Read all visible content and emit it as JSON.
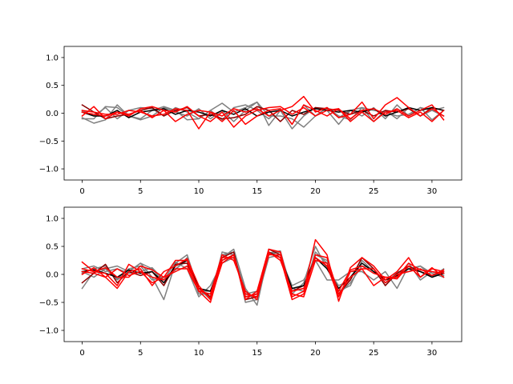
{
  "chart_data": [
    {
      "type": "line",
      "xlim": [
        -1.55,
        32.55
      ],
      "ylim": [
        -1.2,
        1.2
      ],
      "x_ticks": [
        0,
        5,
        10,
        15,
        20,
        25,
        30
      ],
      "x_tick_labels": [
        "0",
        "5",
        "10",
        "15",
        "20",
        "25",
        "30"
      ],
      "y_ticks": [
        -1.0,
        -0.5,
        0.0,
        0.5,
        1.0
      ],
      "y_tick_labels": [
        "−1.0",
        "−0.5",
        "0.0",
        "0.5",
        "1.0"
      ],
      "x": [
        0,
        1,
        2,
        3,
        4,
        5,
        6,
        7,
        8,
        9,
        10,
        11,
        12,
        13,
        14,
        15,
        16,
        17,
        18,
        19,
        20,
        21,
        22,
        23,
        24,
        25,
        26,
        27,
        28,
        29,
        30,
        31
      ],
      "series": [
        {
          "color": "#808080",
          "values": [
            -0.08,
            -0.18,
            -0.12,
            0.15,
            -0.05,
            -0.1,
            0.05,
            0.12,
            0.05,
            -0.12,
            -0.1,
            0.05,
            0.18,
            0.02,
            0.1,
            0.2,
            -0.22,
            0.05,
            -0.28,
            -0.05,
            0.1,
            0.05,
            -0.2,
            0.05,
            -0.05,
            0.1,
            -0.1,
            0.15,
            -0.05,
            0.1,
            0.05,
            -0.05
          ]
        },
        {
          "color": "#808080",
          "values": [
            0.05,
            -0.05,
            0.1,
            -0.1,
            0.05,
            0.1,
            0.08,
            -0.05,
            0.1,
            0.02,
            -0.1,
            0.05,
            -0.12,
            0.1,
            0.15,
            0.05,
            -0.1,
            0.08,
            -0.2,
            0.15,
            -0.05,
            0.1,
            -0.08,
            0.05,
            0.1,
            -0.15,
            0.05,
            -0.1,
            0.1,
            -0.05,
            0.05,
            0.1
          ]
        },
        {
          "color": "#808080",
          "values": [
            -0.1,
            -0.1,
            0.12,
            0.1,
            -0.05,
            -0.12,
            -0.05,
            0.1,
            0.02,
            -0.05,
            0.08,
            -0.1,
            0.05,
            -0.15,
            0.05,
            0.2,
            -0.05,
            -0.05,
            -0.1,
            -0.25,
            -0.05,
            0.1,
            -0.05,
            -0.12,
            0.1,
            0.05,
            0.02,
            -0.05,
            -0.02,
            0.1,
            -0.12,
            0.05
          ]
        },
        {
          "color": "#8b0000",
          "values": [
            0.15,
            0.02,
            -0.1,
            -0.05,
            -0.02,
            0.05,
            0.1,
            -0.05,
            0.05,
            0.1,
            -0.05,
            -0.02,
            -0.1,
            -0.08,
            -0.02,
            0.12,
            0.05,
            -0.15,
            0.05,
            -0.02,
            0.1,
            0.08,
            0.05,
            -0.02,
            0.05,
            -0.05,
            0.05,
            0.02,
            0.08,
            -0.05,
            0.1,
            0.05
          ]
        },
        {
          "color": "#000000",
          "values": [
            0.02,
            -0.05,
            -0.05,
            0.05,
            -0.08,
            0.02,
            0.05,
            0.08,
            -0.02,
            0.05,
            0.02,
            -0.05,
            0.05,
            -0.02,
            0.08,
            -0.05,
            0.02,
            0.05,
            -0.05,
            0.02,
            0.08,
            0.05,
            0.02,
            0.05,
            0.02,
            0.08,
            -0.05,
            0.02,
            0.1,
            0.05,
            0.1,
            0.05
          ]
        },
        {
          "color": "#ff0000",
          "values": [
            -0.05,
            0.12,
            -0.1,
            0.02,
            -0.05,
            0.08,
            0.12,
            0.05,
            0.02,
            0.12,
            -0.05,
            -0.15,
            0.02,
            -0.25,
            -0.05,
            0.05,
            0.1,
            0.12,
            -0.02,
            0.1,
            -0.05,
            0.05,
            0.08,
            -0.1,
            0.05,
            0.08,
            -0.02,
            0.08,
            -0.05,
            0.05,
            0.15,
            -0.12
          ]
        },
        {
          "color": "#ff0000",
          "values": [
            0.02,
            -0.02,
            -0.05,
            0.02,
            -0.02,
            0.05,
            -0.08,
            0.05,
            -0.15,
            -0.02,
            0.05,
            0.02,
            -0.05,
            0.08,
            0.02,
            0.08,
            -0.05,
            0.05,
            0.12,
            0.3,
            0.02,
            0.1,
            -0.08,
            -0.02,
            0.2,
            -0.1,
            0.15,
            0.28,
            0.1,
            -0.05,
            0.08,
            -0.05
          ]
        },
        {
          "color": "#ff0000",
          "values": [
            0.05,
            0.02,
            -0.02,
            -0.02,
            0.05,
            0.02,
            -0.05,
            -0.02,
            0.08,
            0.05,
            -0.28,
            0.02,
            -0.15,
            0.05,
            -0.2,
            -0.05,
            0.05,
            0.08,
            -0.2,
            0.15,
            0.05,
            -0.05,
            0.08,
            -0.15,
            0.02,
            -0.15,
            0.02,
            0.05,
            -0.08,
            0.02,
            -0.15,
            0.05
          ]
        }
      ]
    },
    {
      "type": "line",
      "xlim": [
        -1.55,
        32.55
      ],
      "ylim": [
        -1.2,
        1.2
      ],
      "x_ticks": [
        0,
        5,
        10,
        15,
        20,
        25,
        30
      ],
      "x_tick_labels": [
        "0",
        "5",
        "10",
        "15",
        "20",
        "25",
        "30"
      ],
      "y_ticks": [
        -1.0,
        -0.5,
        0.0,
        0.5,
        1.0
      ],
      "y_tick_labels": [
        "−1.0",
        "−0.5",
        "0.0",
        "0.5",
        "1.0"
      ],
      "x": [
        0,
        1,
        2,
        3,
        4,
        5,
        6,
        7,
        8,
        9,
        10,
        11,
        12,
        13,
        14,
        15,
        16,
        17,
        18,
        19,
        20,
        21,
        22,
        23,
        24,
        25,
        26,
        27,
        28,
        29,
        30,
        31
      ],
      "series": [
        {
          "color": "#808080",
          "values": [
            -0.25,
            0.05,
            0.1,
            -0.1,
            0.05,
            0.2,
            -0.05,
            -0.45,
            0.2,
            0.35,
            -0.3,
            -0.3,
            0.3,
            0.45,
            -0.25,
            -0.55,
            0.4,
            0.3,
            -0.2,
            -0.1,
            0.25,
            -0.1,
            -0.1,
            0.05,
            0.05,
            -0.1,
            0.05,
            -0.25,
            0.15,
            0.05,
            -0.05,
            0.1
          ]
        },
        {
          "color": "#808080",
          "values": [
            0.1,
            0.15,
            0.05,
            0.1,
            0.02,
            0.05,
            0.12,
            -0.1,
            0.22,
            0.1,
            -0.4,
            -0.2,
            0.2,
            0.3,
            -0.35,
            -0.3,
            0.38,
            0.42,
            -0.35,
            -0.15,
            0.5,
            0.1,
            -0.2,
            -0.1,
            0.3,
            0.1,
            -0.15,
            0.02,
            0.1,
            0.15,
            -0.05,
            0.02
          ]
        },
        {
          "color": "#808080",
          "values": [
            0.02,
            0.1,
            0.15,
            -0.08,
            0.1,
            0.15,
            -0.1,
            -0.05,
            0.08,
            0.3,
            -0.25,
            -0.45,
            0.4,
            0.35,
            -0.3,
            -0.45,
            0.3,
            0.35,
            -0.25,
            -0.3,
            0.4,
            0.2,
            -0.3,
            -0.2,
            0.25,
            0.05,
            -0.1,
            -0.05,
            0.2,
            -0.1,
            0.05,
            -0.02
          ]
        },
        {
          "color": "#808080",
          "values": [
            0.05,
            -0.05,
            0.1,
            0.15,
            0.05,
            0.2,
            0.1,
            -0.15,
            0.1,
            0.25,
            -0.35,
            -0.35,
            0.35,
            0.4,
            -0.5,
            -0.45,
            0.35,
            0.4,
            -0.3,
            -0.25,
            0.35,
            0.25,
            -0.35,
            -0.15,
            0.15,
            0.1,
            -0.2,
            0.05,
            0.05,
            0.15,
            0.02,
            -0.05
          ]
        },
        {
          "color": "#8b0000",
          "values": [
            -0.15,
            0.02,
            0.18,
            -0.15,
            0.05,
            -0.02,
            0.05,
            -0.2,
            0.18,
            0.2,
            -0.25,
            -0.4,
            0.3,
            0.4,
            -0.45,
            -0.4,
            0.45,
            0.35,
            -0.3,
            -0.2,
            0.3,
            0.15,
            -0.35,
            -0.1,
            0.3,
            0.1,
            -0.2,
            0.02,
            0.15,
            0.05,
            -0.02,
            0.05
          ]
        },
        {
          "color": "#000000",
          "values": [
            0.05,
            0.08,
            0.02,
            -0.05,
            0.08,
            0.02,
            0.05,
            -0.15,
            0.15,
            0.25,
            -0.25,
            -0.3,
            0.25,
            0.35,
            -0.4,
            -0.35,
            0.4,
            0.3,
            -0.25,
            -0.2,
            0.3,
            0.1,
            -0.25,
            -0.05,
            0.2,
            0.05,
            -0.1,
            -0.02,
            0.1,
            0.05,
            -0.05,
            0.02
          ]
        },
        {
          "color": "#ff0000",
          "values": [
            0.22,
            0.05,
            0.02,
            -0.2,
            0.18,
            0.05,
            -0.15,
            -0.05,
            0.25,
            0.25,
            -0.3,
            -0.5,
            0.25,
            0.35,
            -0.45,
            -0.3,
            0.45,
            0.4,
            -0.4,
            -0.3,
            0.62,
            0.35,
            -0.48,
            0.12,
            0.3,
            0.15,
            -0.1,
            0.05,
            0.3,
            -0.05,
            0.1,
            0.05
          ]
        },
        {
          "color": "#ff0000",
          "values": [
            0.05,
            0.02,
            -0.05,
            -0.25,
            0.05,
            0.1,
            -0.2,
            0.05,
            0.15,
            0.28,
            -0.2,
            -0.45,
            0.2,
            0.35,
            -0.4,
            -0.35,
            0.38,
            0.3,
            -0.45,
            -0.35,
            0.35,
            0.3,
            -0.35,
            -0.05,
            0.1,
            -0.2,
            -0.05,
            -0.05,
            0.2,
            0.08,
            0.05,
            0.02
          ]
        },
        {
          "color": "#ff0000",
          "values": [
            0.1,
            0.05,
            0.12,
            -0.05,
            -0.05,
            0.15,
            0.08,
            -0.05,
            0.05,
            0.15,
            -0.25,
            -0.42,
            0.3,
            0.3,
            -0.35,
            -0.4,
            0.35,
            0.35,
            -0.35,
            -0.4,
            0.25,
            0.2,
            -0.3,
            0.08,
            0.15,
            0.02,
            -0.05,
            -0.08,
            0.15,
            -0.05,
            0.12,
            -0.05
          ]
        },
        {
          "color": "#ff0000",
          "values": [
            0.0,
            0.12,
            -0.05,
            0.1,
            -0.02,
            0.05,
            -0.05,
            -0.1,
            0.1,
            0.1,
            -0.3,
            -0.35,
            0.35,
            0.25,
            -0.3,
            -0.45,
            0.4,
            0.25,
            -0.3,
            -0.25,
            0.3,
            0.15,
            -0.4,
            0.05,
            0.1,
            0.1,
            -0.15,
            0.0,
            0.05,
            0.1,
            -0.02,
            0.08
          ]
        }
      ]
    }
  ]
}
